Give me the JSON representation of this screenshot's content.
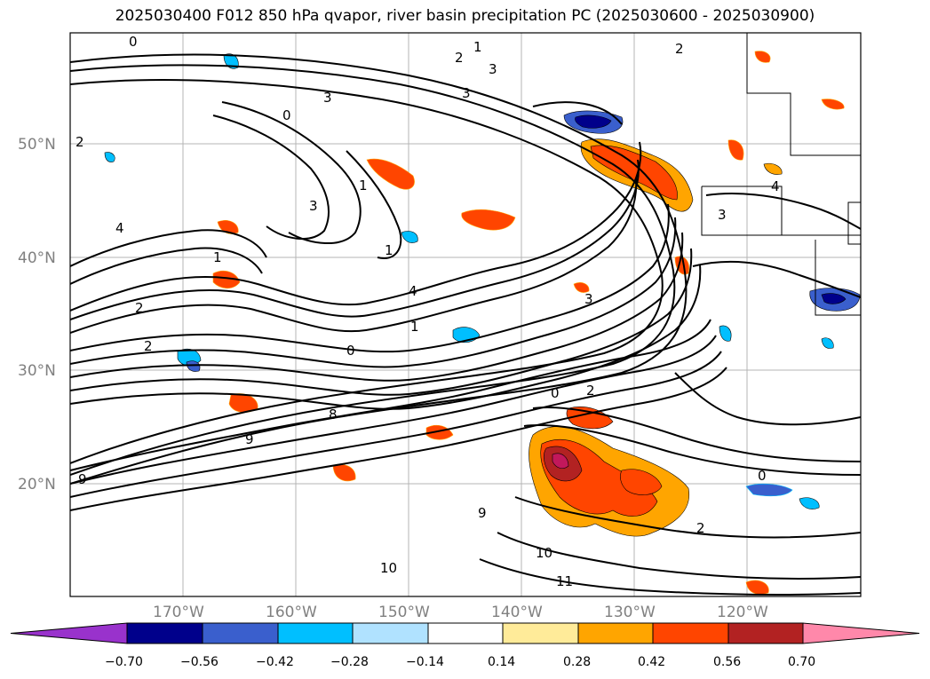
{
  "title": "2025030400 F012 850 hPa qvapor, river basin precipitation PC (2025030600 - 2025030900)",
  "lat_labels": [
    "50°N",
    "40°N",
    "30°N",
    "20°N"
  ],
  "lon_labels": [
    "170°W",
    "160°W",
    "150°W",
    "140°W",
    "130°W",
    "120°W"
  ],
  "colorbar": {
    "tick_labels": [
      "−0.70",
      "−0.56",
      "−0.42",
      "−0.28",
      "−0.14",
      "0.14",
      "0.28",
      "0.42",
      "0.56",
      "0.70"
    ],
    "colors": [
      "#9932cc",
      "#00008b",
      "#3a5fcd",
      "#00bfff",
      "#b0e2ff",
      "#ffffff",
      "#ffeb99",
      "#ffa500",
      "#ff4500",
      "#b22222",
      "#ff88aa"
    ]
  },
  "contour_labels": [
    "0",
    "1",
    "2",
    "3",
    "2",
    "3",
    "1",
    "0",
    "1",
    "3",
    "2",
    "1",
    "4",
    "3",
    "4",
    "3",
    "2",
    "1",
    "3",
    "2",
    "4",
    "2",
    "0",
    "8",
    "9",
    "10",
    "11",
    "2",
    "0",
    "10",
    "9",
    "0",
    "9"
  ],
  "fill_colors": {
    "neg_dark": "#00008b",
    "neg_mid": "#3a5fcd",
    "neg_light": "#00bfff",
    "pos_light": "#ffa500",
    "pos_mid": "#ff4500",
    "pos_dark": "#b22222",
    "pos_max": "#c2185b"
  }
}
